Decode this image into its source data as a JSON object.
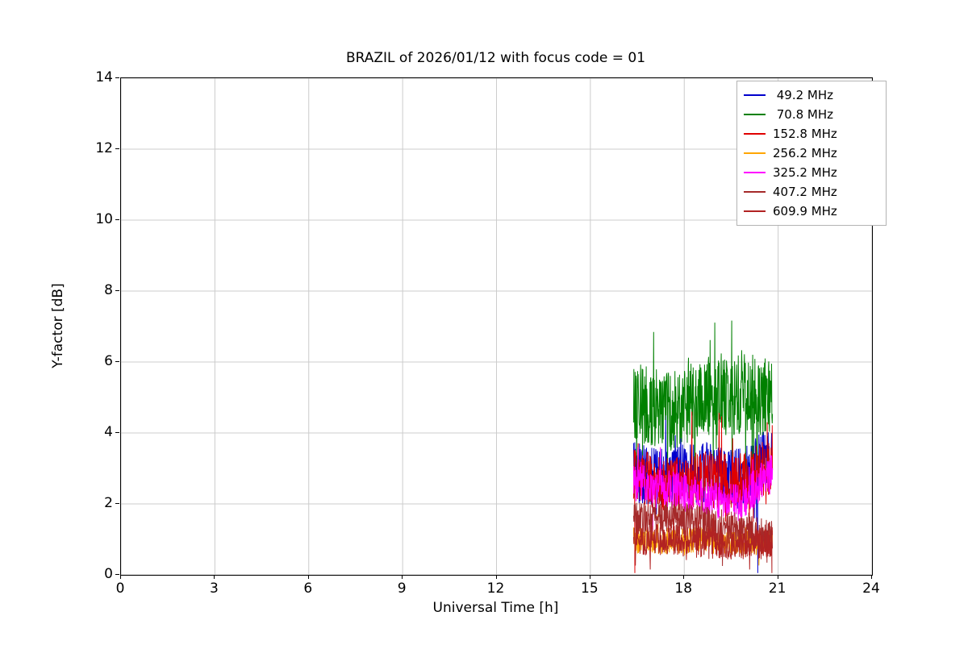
{
  "chart_data": {
    "type": "line",
    "title": "BRAZIL of 2026/01/12 with focus code = 01",
    "xlabel": "Universal Time [h]",
    "ylabel": "Y-factor [dB]",
    "xlim": [
      0,
      24
    ],
    "ylim": [
      0,
      14
    ],
    "xticks": [
      0,
      3,
      6,
      9,
      12,
      15,
      18,
      21,
      24
    ],
    "yticks": [
      0,
      2,
      4,
      6,
      8,
      10,
      12,
      14
    ],
    "grid": true,
    "grid_color": "#cccccc",
    "legend_position": "upper right",
    "x_data_range": [
      16.38,
      20.82
    ],
    "points_per_series": 450,
    "series": [
      {
        "name": "49.2 MHz",
        "label": " 49.2 MHz",
        "color": "#0000cc",
        "trend": [
          2.9,
          2.7,
          2.9,
          2.7,
          3.4
        ],
        "noise": 0.85,
        "spike_prob": 0.05,
        "spike_amp": 1.0,
        "y_range": [
          1.5,
          4.6
        ],
        "drops": [
          20.35
        ]
      },
      {
        "name": "70.8 MHz",
        "label": " 70.8 MHz",
        "color": "#008000",
        "trend": [
          4.9,
          4.6,
          5.0,
          5.1,
          5.0
        ],
        "noise": 1.15,
        "spike_prob": 0.08,
        "spike_amp": 1.6,
        "y_range": [
          2.9,
          7.6
        ],
        "drops": []
      },
      {
        "name": "152.8 MHz",
        "label": "152.8 MHz",
        "color": "#e00000",
        "trend": [
          2.8,
          2.5,
          2.7,
          2.6,
          3.1
        ],
        "noise": 0.8,
        "spike_prob": 0.05,
        "spike_amp": 1.1,
        "y_range": [
          1.5,
          4.6
        ],
        "drops": [
          16.42
        ]
      },
      {
        "name": "256.2 MHz",
        "label": "256.2 MHz",
        "color": "#ffa500",
        "trend": [
          1.0,
          0.95,
          1.0,
          0.9,
          1.0
        ],
        "noise": 0.38,
        "spike_prob": 0.03,
        "spike_amp": 0.5,
        "y_range": [
          0.25,
          1.8
        ],
        "drops": []
      },
      {
        "name": "325.2 MHz",
        "label": "325.2 MHz",
        "color": "#ff00ff",
        "trend": [
          2.7,
          2.4,
          2.2,
          2.0,
          2.9
        ],
        "noise": 0.55,
        "spike_prob": 0.05,
        "spike_amp": 0.8,
        "y_range": [
          1.2,
          3.6
        ],
        "drops": []
      },
      {
        "name": "407.2 MHz",
        "label": "407.2 MHz",
        "color": "#a52a2a",
        "trend": [
          1.55,
          1.6,
          1.45,
          1.25,
          1.1
        ],
        "noise": 0.5,
        "spike_prob": 0.04,
        "spike_amp": 0.6,
        "y_range": [
          0.25,
          2.3
        ],
        "drops": []
      },
      {
        "name": "609.9 MHz",
        "label": "609.9 MHz",
        "color": "#b22222",
        "trend": [
          0.95,
          1.0,
          0.9,
          0.85,
          0.9
        ],
        "noise": 0.45,
        "spike_prob": 0.04,
        "spike_amp": 0.6,
        "y_range": [
          0.15,
          1.8
        ],
        "drops": [
          20.8
        ]
      }
    ]
  }
}
